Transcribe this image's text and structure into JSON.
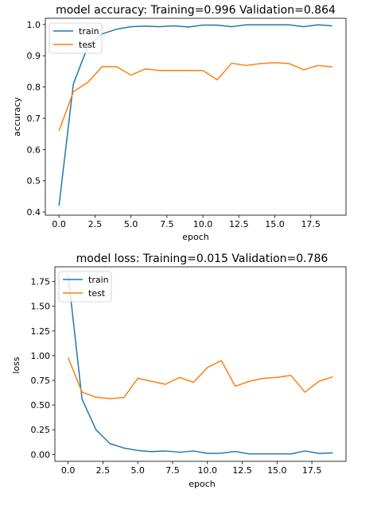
{
  "colors": {
    "train": "#1f77b4",
    "test": "#ff7f0e",
    "axis": "#000000",
    "legend_border": "#cccccc"
  },
  "chart_data": [
    {
      "type": "line",
      "title": "model accuracy:  Training=0.996 Validation=0.864",
      "xlabel": "epoch",
      "ylabel": "accuracy",
      "xlim": [
        -0.95,
        19.95
      ],
      "ylim": [
        0.39,
        1.02
      ],
      "xticks": [
        0,
        2.5,
        5,
        7.5,
        10,
        12.5,
        15,
        17.5
      ],
      "xtick_labels": [
        "0.0",
        "2.5",
        "5.0",
        "7.5",
        "10.0",
        "12.5",
        "15.0",
        "17.5"
      ],
      "yticks": [
        0.4,
        0.5,
        0.6,
        0.7,
        0.8,
        0.9,
        1.0
      ],
      "ytick_labels": [
        "0.4",
        "0.5",
        "0.6",
        "0.7",
        "0.8",
        "0.9",
        "1.0"
      ],
      "legend": {
        "position": "upper left",
        "entries": [
          "train",
          "test"
        ]
      },
      "grid": false,
      "x": [
        0,
        1,
        2,
        3,
        4,
        5,
        6,
        7,
        8,
        9,
        10,
        11,
        12,
        13,
        14,
        15,
        16,
        17,
        18,
        19
      ],
      "series": [
        {
          "name": "train",
          "values": [
            0.42,
            0.81,
            0.93,
            0.97,
            0.985,
            0.993,
            0.995,
            0.993,
            0.996,
            0.992,
            0.998,
            0.998,
            0.993,
            0.999,
            0.999,
            0.999,
            0.999,
            0.993,
            0.999,
            0.996
          ]
        },
        {
          "name": "test",
          "values": [
            0.66,
            0.785,
            0.815,
            0.865,
            0.865,
            0.838,
            0.858,
            0.853,
            0.853,
            0.853,
            0.853,
            0.823,
            0.876,
            0.869,
            0.875,
            0.878,
            0.875,
            0.855,
            0.869,
            0.864
          ]
        }
      ]
    },
    {
      "type": "line",
      "title": "model loss:  Training=0.015 Validation=0.786",
      "xlabel": "epoch",
      "ylabel": "loss",
      "xlim": [
        -0.95,
        19.95
      ],
      "ylim": [
        -0.07,
        1.9
      ],
      "xticks": [
        0,
        2.5,
        5,
        7.5,
        10,
        12.5,
        15,
        17.5
      ],
      "xtick_labels": [
        "0.0",
        "2.5",
        "5.0",
        "7.5",
        "10.0",
        "12.5",
        "15.0",
        "17.5"
      ],
      "yticks": [
        0,
        0.25,
        0.5,
        0.75,
        1.0,
        1.25,
        1.5,
        1.75
      ],
      "ytick_labels": [
        "0.00",
        "0.25",
        "0.50",
        "0.75",
        "1.00",
        "1.25",
        "1.50",
        "1.75"
      ],
      "legend": {
        "position": "upper left",
        "entries": [
          "train",
          "test"
        ]
      },
      "grid": false,
      "x": [
        0,
        1,
        2,
        3,
        4,
        5,
        6,
        7,
        8,
        9,
        10,
        11,
        12,
        13,
        14,
        15,
        16,
        17,
        18,
        19
      ],
      "series": [
        {
          "name": "train",
          "values": [
            1.82,
            0.56,
            0.25,
            0.11,
            0.065,
            0.04,
            0.028,
            0.035,
            0.022,
            0.035,
            0.01,
            0.012,
            0.03,
            0.005,
            0.005,
            0.005,
            0.005,
            0.035,
            0.01,
            0.015
          ]
        },
        {
          "name": "test",
          "values": [
            0.98,
            0.63,
            0.58,
            0.565,
            0.575,
            0.77,
            0.74,
            0.71,
            0.78,
            0.73,
            0.88,
            0.95,
            0.69,
            0.74,
            0.77,
            0.78,
            0.8,
            0.63,
            0.74,
            0.786
          ]
        }
      ]
    }
  ]
}
